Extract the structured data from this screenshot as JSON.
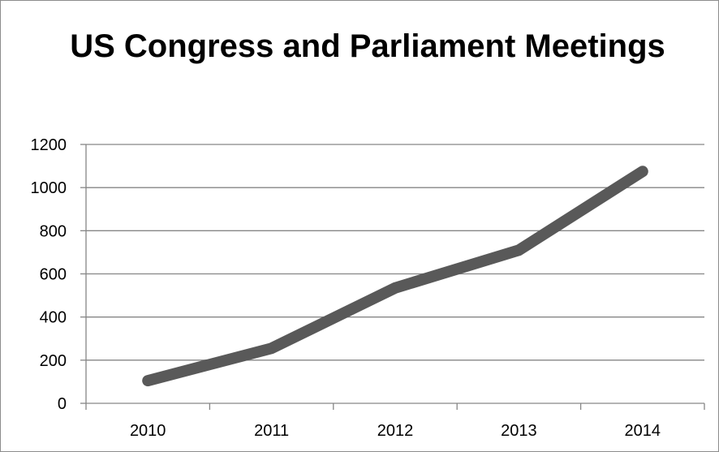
{
  "chart_data": {
    "type": "line",
    "title": "US Congress and Parliament Meetings",
    "categories": [
      "2010",
      "2011",
      "2012",
      "2013",
      "2014"
    ],
    "series": [
      {
        "values": [
          105,
          255,
          535,
          710,
          1075
        ],
        "color": "#595959"
      }
    ],
    "ylim": [
      0,
      1200
    ],
    "yticks": [
      "0",
      "200",
      "400",
      "600",
      "800",
      "1000",
      "1200"
    ],
    "xlabel": "",
    "ylabel": "",
    "grid": true,
    "legend": "none"
  }
}
